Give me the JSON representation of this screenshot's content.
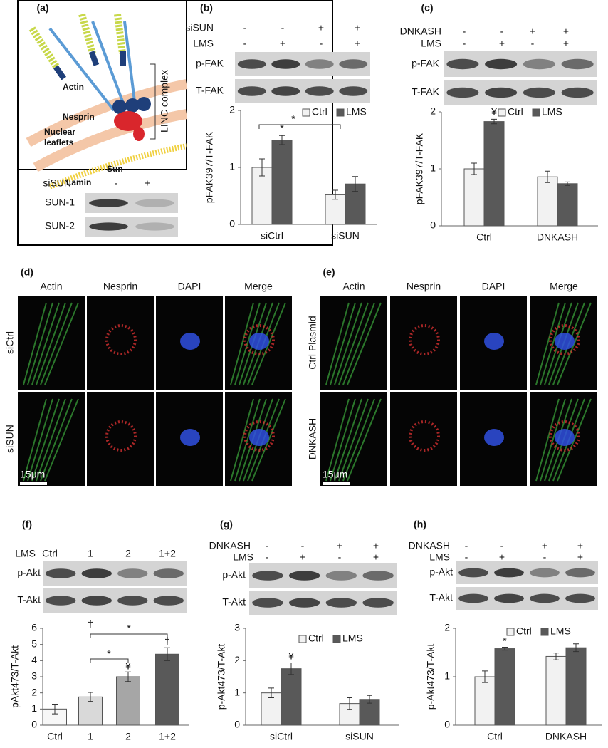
{
  "figure": {
    "panel_labels": [
      "(a)",
      "(b)",
      "(c)",
      "(d)",
      "(e)",
      "(f)",
      "(g)",
      "(h)"
    ],
    "linc": {
      "labels": [
        "Actin",
        "Nesprin",
        "Nuclear",
        "leaflets",
        "Sun",
        "Lamin"
      ],
      "bracket": "LINC complex"
    },
    "blots": [
      {
        "conditions": [
          {
            "name": "siSUN",
            "signs": [
              "-",
              "+"
            ]
          }
        ],
        "bands": [
          "SUN-1",
          "SUN-2"
        ]
      },
      {
        "conditions": [
          {
            "name": "siSUN",
            "signs": [
              "-",
              "-",
              "+",
              "+"
            ]
          },
          {
            "name": "LMS",
            "signs": [
              "-",
              "+",
              "-",
              "+"
            ]
          }
        ],
        "bands": [
          "p-FAK",
          "T-FAK"
        ]
      },
      {
        "conditions": [
          {
            "name": "DNKASH",
            "signs": [
              "-",
              "-",
              "+",
              "+"
            ]
          },
          {
            "name": "LMS",
            "signs": [
              "-",
              "+",
              "-",
              "+"
            ]
          }
        ],
        "bands": [
          "p-FAK",
          "T-FAK"
        ]
      },
      {
        "conditions": [
          {
            "name": "LMS",
            "signs": [
              "Ctrl",
              "1",
              "2",
              "1+2"
            ]
          }
        ],
        "bands": [
          "p-Akt",
          "T-Akt"
        ]
      },
      {
        "conditions": [
          {
            "name": "DNKASH",
            "signs": [
              "-",
              "-",
              "+",
              "+"
            ]
          },
          {
            "name": "LMS",
            "signs": [
              "-",
              "+",
              "-",
              "+"
            ]
          }
        ],
        "bands": [
          "p-Akt",
          "T-Akt"
        ]
      },
      {
        "conditions": [
          {
            "name": "DNKASH",
            "signs": [
              "-",
              "-",
              "+",
              "+"
            ]
          },
          {
            "name": "LMS",
            "signs": [
              "-",
              "+",
              "-",
              "+"
            ]
          }
        ],
        "bands": [
          "p-Akt",
          "T-Akt"
        ]
      }
    ],
    "micrographs": [
      {
        "columns": [
          "Actin",
          "Nesprin",
          "DAPI",
          "Merge"
        ],
        "rows": [
          "siCtrl",
          "siSUN"
        ],
        "scale": "15μm"
      },
      {
        "columns": [
          "Actin",
          "Nesprin",
          "DAPI",
          "Merge"
        ],
        "rows": [
          "Ctrl Plasmid",
          "DNKASH"
        ],
        "scale": "15μm"
      }
    ]
  },
  "chart_data": [
    {
      "type": "bar",
      "ylabel": "pFAK397/T-FAK",
      "categories": [
        "siCtrl",
        "siSUN"
      ],
      "series": [
        {
          "name": "Ctrl",
          "color": "#f2f2f2",
          "values": [
            1.0,
            0.52
          ],
          "errors": [
            0.15,
            0.08
          ]
        },
        {
          "name": "LMS",
          "color": "#595959",
          "values": [
            1.48,
            0.71
          ],
          "errors": [
            0.08,
            0.13
          ]
        }
      ],
      "ylim": [
        0,
        2
      ],
      "yticks": [
        0,
        1,
        2
      ],
      "annotations": [
        "*",
        "*"
      ]
    },
    {
      "type": "bar",
      "ylabel": "pFAK397/T-FAK",
      "categories": [
        "Ctrl",
        "DNKASH"
      ],
      "series": [
        {
          "name": "Ctrl",
          "color": "#f2f2f2",
          "values": [
            1.0,
            0.86
          ],
          "errors": [
            0.1,
            0.1
          ]
        },
        {
          "name": "LMS",
          "color": "#595959",
          "values": [
            1.83,
            0.74
          ],
          "errors": [
            0.04,
            0.03
          ]
        }
      ],
      "ylim": [
        0,
        2
      ],
      "yticks": [
        0,
        1,
        2
      ],
      "annotations": [
        "¥"
      ]
    },
    {
      "type": "bar",
      "ylabel": "pAkt473/T-Akt",
      "categories": [
        "Ctrl",
        "1",
        "2",
        "1+2"
      ],
      "values": [
        1.0,
        1.75,
        3.0,
        4.4
      ],
      "errors": [
        0.3,
        0.28,
        0.3,
        0.4
      ],
      "colors": [
        "#f7f7f7",
        "#d9d9d9",
        "#a6a6a6",
        "#595959"
      ],
      "ylim": [
        0,
        6
      ],
      "yticks": [
        0,
        1,
        2,
        3,
        4,
        5,
        6
      ],
      "annotations": [
        "¥",
        "†",
        "†",
        "*",
        "*"
      ]
    },
    {
      "type": "bar",
      "ylabel": "p-Akt473/T-Akt",
      "categories": [
        "siCtrl",
        "siSUN"
      ],
      "series": [
        {
          "name": "Ctrl",
          "color": "#f2f2f2",
          "values": [
            1.0,
            0.67
          ],
          "errors": [
            0.15,
            0.18
          ]
        },
        {
          "name": "LMS",
          "color": "#595959",
          "values": [
            1.75,
            0.8
          ],
          "errors": [
            0.18,
            0.12
          ]
        }
      ],
      "ylim": [
        0,
        3
      ],
      "yticks": [
        0,
        1,
        2,
        3
      ],
      "annotations": [
        "¥"
      ]
    },
    {
      "type": "bar",
      "ylabel": "p-Akt473/T-Akt",
      "categories": [
        "Ctrl",
        "DNKASH"
      ],
      "series": [
        {
          "name": "Ctrl",
          "color": "#f2f2f2",
          "values": [
            1.0,
            1.42
          ],
          "errors": [
            0.12,
            0.07
          ]
        },
        {
          "name": "LMS",
          "color": "#595959",
          "values": [
            1.58,
            1.6
          ],
          "errors": [
            0.03,
            0.08
          ]
        }
      ],
      "ylim": [
        0,
        2
      ],
      "yticks": [
        0,
        1,
        2
      ],
      "annotations": [
        "*"
      ]
    }
  ]
}
